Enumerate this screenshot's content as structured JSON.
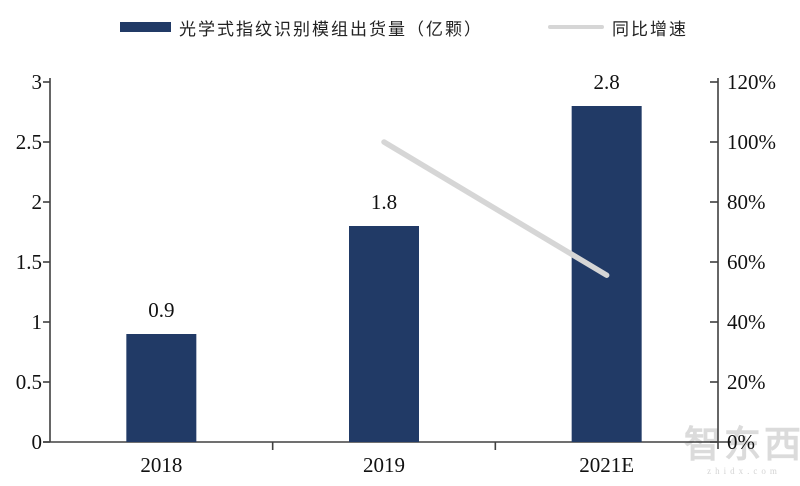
{
  "legend": {
    "bar_label": "光学式指纹识别模组出货量（亿颗）",
    "line_label": "同比增速"
  },
  "colors": {
    "bar": "#213a66",
    "line": "#d6d6d6",
    "axis": "#404040",
    "text": "#111111"
  },
  "watermark": {
    "text": "智东西",
    "subtext": "zhidx.com"
  },
  "chart_data": {
    "type": "bar",
    "categories": [
      "2018",
      "2019",
      "2021E"
    ],
    "series": [
      {
        "name": "光学式指纹识别模组出货量（亿颗）",
        "type": "bar",
        "axis": "left",
        "values": [
          0.9,
          1.8,
          2.8
        ]
      },
      {
        "name": "同比增速",
        "type": "line",
        "axis": "right",
        "values": [
          null,
          100,
          55.6
        ],
        "unit": "%"
      }
    ],
    "bar_labels": [
      "0.9",
      "1.8",
      "2.8"
    ],
    "left_axis": {
      "min": 0,
      "max": 3,
      "tick_labels": [
        "3",
        "2.5",
        "2",
        "1.5",
        "1",
        "0.5",
        "0"
      ]
    },
    "right_axis": {
      "min": 0,
      "max": 120,
      "tick_labels": [
        "120%",
        "100%",
        "80%",
        "60%",
        "40%",
        "20%",
        "0%"
      ]
    },
    "grid": false,
    "legend_position": "top"
  }
}
